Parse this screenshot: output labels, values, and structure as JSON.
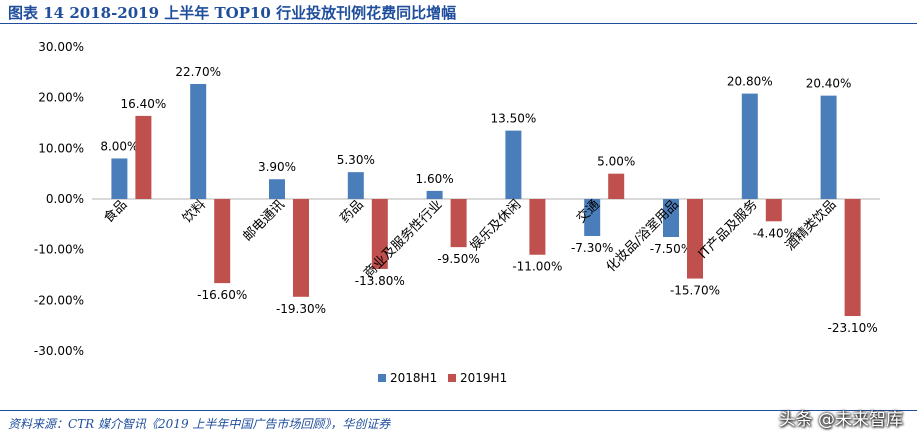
{
  "header": {
    "title": "图表 14 2018-2019 上半年 TOP10 行业投放刊例花费同比增幅"
  },
  "footer": {
    "source": "资料来源：CTR 媒介智讯《2019 上半年中国广告市场回顾》，华创证券",
    "watermark": "头条 @未来智库"
  },
  "colors": {
    "series_2018": "#4a7ebb",
    "series_2019": "#c0504d",
    "title": "#1f4e9c"
  },
  "chart_data": {
    "type": "bar",
    "title": "图表 14 2018-2019 上半年 TOP10 行业投放刊例花费同比增幅",
    "xlabel": "",
    "ylabel": "",
    "ylim": [
      -30,
      30
    ],
    "ytick_values": [
      30,
      20,
      10,
      0,
      -10,
      -20,
      -30
    ],
    "yticks": [
      "30.00%",
      "20.00%",
      "10.00%",
      "0.00%",
      "-10.00%",
      "-20.00%",
      "-30.00%"
    ],
    "grid": false,
    "legend_position": "bottom",
    "categories": [
      "食品",
      "饮料",
      "邮电通讯",
      "药品",
      "商业及服务性行业",
      "娱乐及休闲",
      "交通",
      "化妆品/浴室用品",
      "IT产品及服务",
      "酒精类饮品"
    ],
    "series": [
      {
        "name": "2018H1",
        "color": "#4a7ebb",
        "values": [
          8.0,
          22.7,
          3.9,
          5.3,
          1.6,
          13.5,
          -7.3,
          -7.5,
          20.8,
          20.4
        ],
        "labels": [
          "8.00%",
          "22.70%",
          "3.90%",
          "5.30%",
          "1.60%",
          "13.50%",
          "-7.30%",
          "-7.50%",
          "20.80%",
          "20.40%"
        ]
      },
      {
        "name": "2019H1",
        "color": "#c0504d",
        "values": [
          16.4,
          -16.6,
          -19.3,
          -13.8,
          -9.5,
          -11.0,
          5.0,
          -15.7,
          -4.4,
          -23.1
        ],
        "labels": [
          "16.40%",
          "-16.60%",
          "-19.30%",
          "-13.80%",
          "-9.50%",
          "-11.00%",
          "5.00%",
          "-15.70%",
          "-4.40%",
          "-23.10%"
        ]
      }
    ]
  }
}
